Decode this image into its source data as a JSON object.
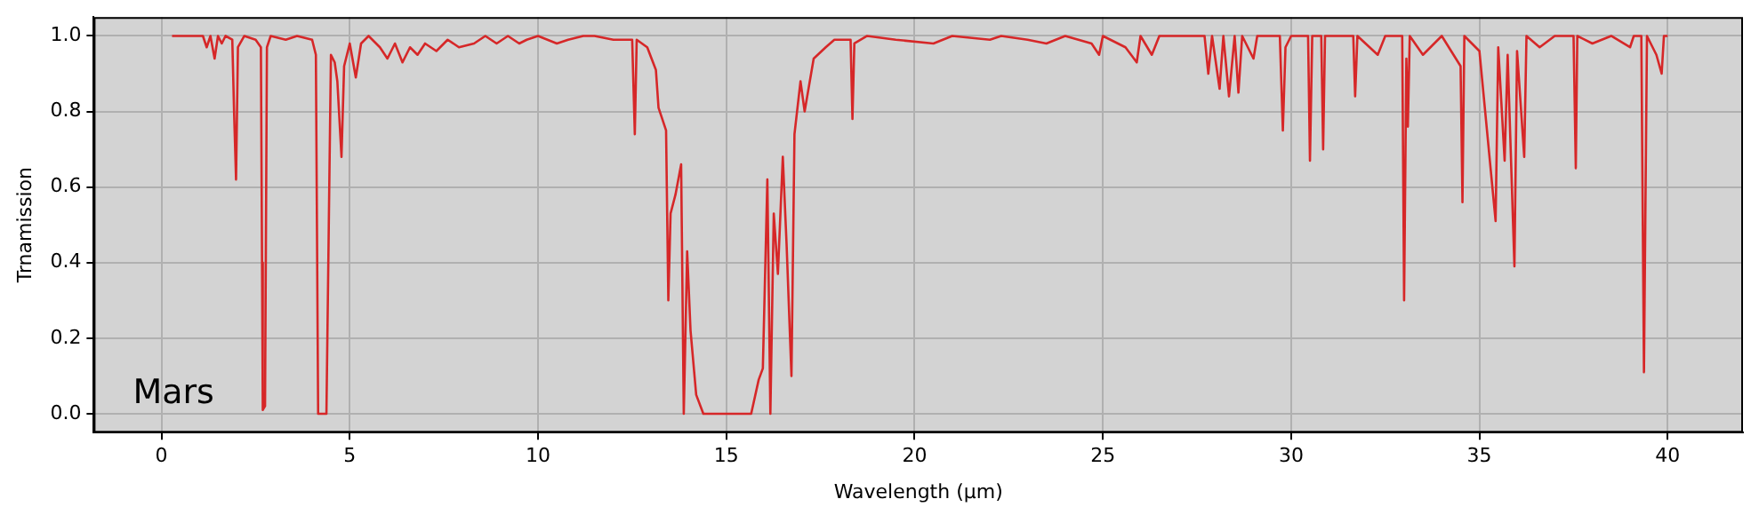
{
  "chart_data": {
    "type": "line",
    "xlabel": "Wavelength (μm)",
    "ylabel": "Trnamission",
    "annotations": [
      "Mars"
    ],
    "xlim": [
      -1.8,
      42
    ],
    "xticks": [
      0,
      5,
      10,
      15,
      20,
      25,
      30,
      35,
      40
    ],
    "ylim": [
      -0.05,
      1.05
    ],
    "yticks": [
      {
        "value": 0,
        "label": "0.0"
      },
      {
        "value": 0.2,
        "label": "0.2"
      },
      {
        "value": 0.4,
        "label": "0.4"
      },
      {
        "value": 0.6,
        "label": "0.6"
      },
      {
        "value": 0.8,
        "label": "0.8"
      },
      {
        "value": 1,
        "label": "1.0"
      }
    ],
    "grid": true,
    "marker": "none",
    "series": [
      {
        "color": "#d62728",
        "x": [
          0.28,
          1.1,
          1.2,
          1.3,
          1.41,
          1.5,
          1.6,
          1.7,
          1.88,
          1.93,
          1.98,
          2.03,
          2.2,
          2.5,
          2.64,
          2.67,
          2.69,
          2.75,
          2.8,
          2.9,
          3.3,
          3.6,
          4.0,
          4.1,
          4.16,
          4.38,
          4.5,
          4.6,
          4.67,
          4.78,
          4.85,
          5.0,
          5.16,
          5.3,
          5.5,
          5.8,
          6.0,
          6.2,
          6.4,
          6.6,
          6.8,
          7.0,
          7.3,
          7.6,
          7.9,
          8.3,
          8.6,
          8.9,
          9.2,
          9.5,
          9.7,
          10.0,
          10.5,
          10.8,
          11.2,
          11.5,
          12.0,
          12.5,
          12.57,
          12.62,
          12.9,
          13.13,
          13.2,
          13.4,
          13.46,
          13.52,
          13.65,
          13.8,
          13.87,
          13.96,
          14.05,
          14.2,
          14.39,
          15.66,
          15.86,
          15.97,
          16.09,
          16.17,
          16.26,
          16.37,
          16.5,
          16.6,
          16.73,
          16.81,
          16.97,
          17.08,
          17.32,
          17.64,
          17.87,
          18.3,
          18.35,
          18.4,
          18.74,
          19.5,
          20.5,
          21.0,
          22.0,
          22.3,
          23.0,
          23.5,
          24.0,
          24.7,
          24.9,
          25.0,
          25.6,
          25.9,
          26.0,
          26.3,
          26.5,
          27.7,
          27.8,
          27.9,
          28.1,
          28.2,
          28.35,
          28.5,
          28.6,
          28.7,
          29.0,
          29.1,
          29.7,
          29.78,
          29.85,
          30.0,
          30.45,
          30.5,
          30.56,
          30.8,
          30.85,
          30.9,
          31.65,
          31.7,
          31.76,
          32.3,
          32.5,
          32.95,
          33.0,
          33.06,
          33.1,
          33.15,
          33.5,
          34.0,
          34.5,
          34.55,
          34.6,
          35.0,
          35.43,
          35.5,
          35.67,
          35.75,
          35.93,
          36.0,
          36.19,
          36.25,
          36.6,
          37.0,
          37.5,
          37.56,
          37.6,
          38.0,
          38.5,
          39.0,
          39.1,
          39.3,
          39.37,
          39.45,
          39.7,
          39.84,
          39.9,
          40.0
        ],
        "values": [
          1.0,
          1.0,
          0.97,
          1.0,
          0.94,
          1.0,
          0.98,
          1.0,
          0.99,
          0.79,
          0.62,
          0.97,
          1.0,
          0.99,
          0.97,
          0.4,
          0.01,
          0.02,
          0.97,
          1.0,
          0.99,
          1.0,
          0.99,
          0.95,
          0.0,
          0.0,
          0.95,
          0.93,
          0.88,
          0.68,
          0.92,
          0.98,
          0.89,
          0.98,
          1.0,
          0.97,
          0.94,
          0.98,
          0.93,
          0.97,
          0.95,
          0.98,
          0.96,
          0.99,
          0.97,
          0.98,
          1.0,
          0.98,
          1.0,
          0.98,
          0.99,
          1.0,
          0.98,
          0.99,
          1.0,
          1.0,
          0.99,
          0.99,
          0.74,
          0.99,
          0.97,
          0.91,
          0.81,
          0.75,
          0.3,
          0.53,
          0.58,
          0.66,
          0.0,
          0.43,
          0.22,
          0.05,
          0.0,
          0.0,
          0.09,
          0.12,
          0.62,
          0.0,
          0.53,
          0.37,
          0.68,
          0.45,
          0.1,
          0.74,
          0.88,
          0.8,
          0.94,
          0.97,
          0.99,
          0.99,
          0.78,
          0.98,
          1.0,
          0.99,
          0.98,
          1.0,
          0.99,
          1.0,
          0.99,
          0.98,
          1.0,
          0.98,
          0.95,
          1.0,
          0.97,
          0.93,
          1.0,
          0.95,
          1.0,
          1.0,
          0.9,
          1.0,
          0.86,
          1.0,
          0.84,
          1.0,
          0.85,
          1.0,
          0.94,
          1.0,
          1.0,
          0.75,
          0.97,
          1.0,
          1.0,
          0.67,
          1.0,
          1.0,
          0.7,
          1.0,
          1.0,
          0.84,
          1.0,
          0.95,
          1.0,
          1.0,
          0.3,
          0.94,
          0.76,
          1.0,
          0.95,
          1.0,
          0.92,
          0.56,
          1.0,
          0.96,
          0.51,
          0.97,
          0.67,
          0.95,
          0.39,
          0.96,
          0.68,
          1.0,
          0.97,
          1.0,
          1.0,
          0.65,
          1.0,
          0.98,
          1.0,
          0.97,
          1.0,
          1.0,
          0.11,
          1.0,
          0.95,
          0.9,
          1.0,
          1.0
        ]
      }
    ]
  }
}
